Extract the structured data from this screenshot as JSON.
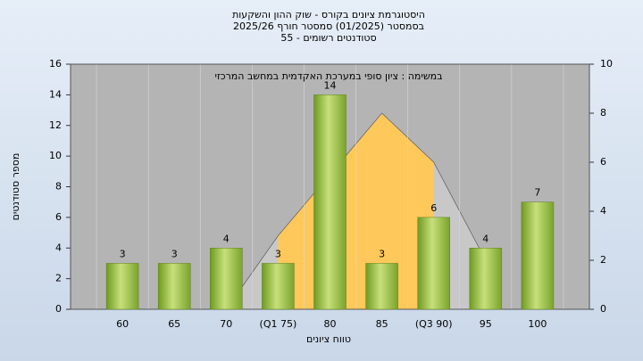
{
  "chart_data": {
    "type": "bar",
    "title": [
      "היסטוגרמת ציונים בקורס - שוק ההון והשקעות",
      "בסמסטר (01/2025)  סמסטר חורף 2025/26",
      "סטודנטים רשומים - 55"
    ],
    "annotation": "במשימה : ציון סופי במערכת האקדמית במחשב המרכזי",
    "x_label": "טווח ציונים",
    "y_label": "מספר סטודנטים",
    "categories": [
      null,
      "60",
      "65",
      "70",
      "(Q1 75)",
      "80",
      "85",
      "(Q3 90)",
      "95",
      "100",
      null
    ],
    "values": [
      null,
      3,
      3,
      4,
      3,
      14,
      3,
      6,
      4,
      7,
      null
    ],
    "color": "#8fb83a",
    "area": {
      "axis": "y2",
      "values": [
        null,
        null,
        null,
        0,
        3,
        5.5,
        8,
        6,
        2,
        null,
        null
      ],
      "color": "#c8c8c8",
      "highlight_color": "#ffc85a",
      "highlight_range": [
        4,
        7
      ]
    },
    "ylim": [
      0,
      16
    ],
    "yticks": [
      0,
      2,
      4,
      6,
      8,
      10,
      12,
      14,
      16
    ],
    "y2lim": [
      0,
      10
    ],
    "y2ticks": [
      0,
      2,
      4,
      6,
      8,
      10
    ],
    "grid": true
  }
}
